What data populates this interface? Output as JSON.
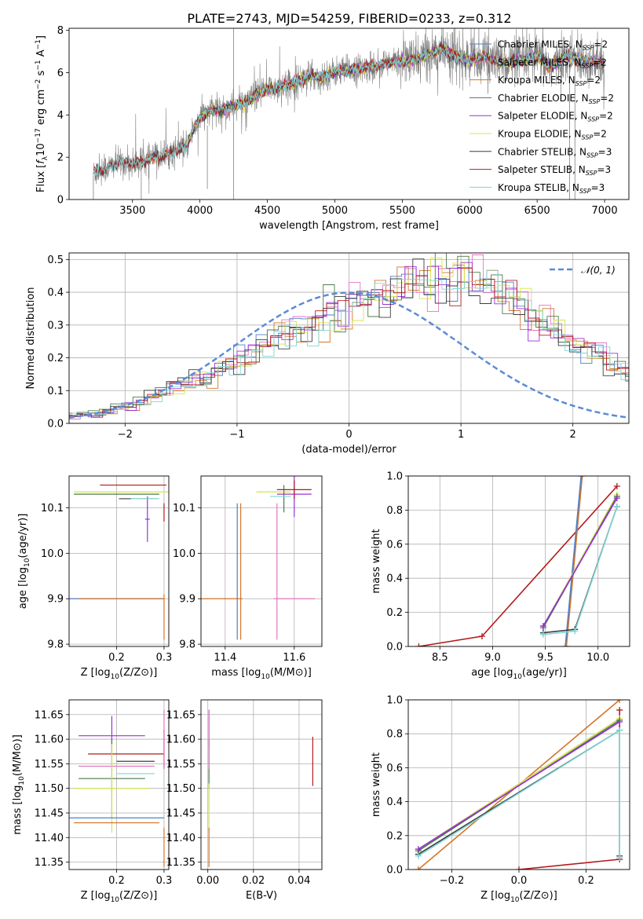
{
  "title": "PLATE=2743, MJD=54259, FIBERID=0233, z=0.312",
  "colors": {
    "Chabrier MILES": "#4f7fc9",
    "Salpeter MILES": "#e377c2",
    "Kroupa MILES": "#d4762a",
    "Chabrier ELODIE": "#4d7a4d",
    "Salpeter ELODIE": "#9b30d9",
    "Kroupa ELODIE": "#d4e34f",
    "Chabrier STELIB": "#3d3d3d",
    "Salpeter STELIB": "#b31b1b",
    "Kroupa STELIB": "#7fd6d6",
    "data": "#808080",
    "normal": "#5b8bd6",
    "grid": "#b0b0b0"
  },
  "chart_data": [
    {
      "id": "spectrum",
      "type": "line",
      "xlabel": "wavelength [Angstrom, rest frame]",
      "ylabel": "Flux [f_λ10^-17 erg cm^-2 s^-1 A^-1]",
      "xlim": [
        3030,
        7180
      ],
      "ylim": [
        0,
        8.1
      ],
      "xticks": [
        3500,
        4000,
        4500,
        5000,
        5500,
        6000,
        6500,
        7000
      ],
      "yticks": [
        0,
        2,
        4,
        6,
        8
      ],
      "grid": false,
      "legend_position": "top-right",
      "legend": [
        {
          "name": "Chabrier MILES",
          "nssp": "2"
        },
        {
          "name": "Salpeter MILES",
          "nssp": "2"
        },
        {
          "name": "Kroupa MILES",
          "nssp": "2"
        },
        {
          "name": "Chabrier ELODIE",
          "nssp": "2"
        },
        {
          "name": "Salpeter ELODIE",
          "nssp": "2"
        },
        {
          "name": "Kroupa ELODIE",
          "nssp": "2"
        },
        {
          "name": "Chabrier STELIB",
          "nssp": "3"
        },
        {
          "name": "Salpeter STELIB",
          "nssp": "3"
        },
        {
          "name": "Kroupa STELIB",
          "nssp": "3"
        }
      ],
      "continuum": {
        "x": [
          3210,
          3300,
          3400,
          3500,
          3600,
          3700,
          3800,
          3900,
          3950,
          4000,
          4100,
          4200,
          4300,
          4400,
          4500,
          4600,
          4700,
          4800,
          4900,
          5000,
          5100,
          5200,
          5300,
          5400,
          5500,
          5600,
          5700,
          5800,
          5900,
          6000,
          6100,
          6200,
          6300,
          6400,
          6500,
          6600,
          6700,
          6800,
          6900,
          7000
        ],
        "y": [
          1.25,
          1.45,
          1.75,
          1.7,
          1.85,
          2.05,
          2.25,
          2.5,
          3.3,
          3.9,
          4.25,
          4.3,
          4.5,
          4.85,
          5.2,
          5.35,
          5.55,
          5.85,
          5.8,
          6.05,
          6.1,
          6.2,
          6.3,
          6.45,
          6.55,
          6.6,
          6.9,
          7.1,
          6.75,
          6.55,
          6.75,
          6.55,
          6.5,
          6.6,
          6.75,
          6.25,
          6.7,
          6.65,
          6.55,
          6.4
        ]
      }
    },
    {
      "id": "residuals",
      "type": "step",
      "xlabel": "(data-model)/error",
      "ylabel": "Normed distribution",
      "xlim": [
        -2.5,
        2.5
      ],
      "ylim": [
        0,
        0.52
      ],
      "xticks": [
        -2,
        -1,
        0,
        1,
        2
      ],
      "yticks": [
        0.0,
        0.1,
        0.2,
        0.3,
        0.4,
        0.5
      ],
      "grid": true,
      "legend_position": "top-right",
      "legend": [
        {
          "name": "𝒩(0, 1)"
        }
      ],
      "bin_width": 0.1,
      "base_hist": [
        0.02,
        0.025,
        0.03,
        0.035,
        0.045,
        0.055,
        0.065,
        0.08,
        0.095,
        0.11,
        0.12,
        0.135,
        0.15,
        0.165,
        0.18,
        0.2,
        0.22,
        0.24,
        0.26,
        0.27,
        0.285,
        0.3,
        0.32,
        0.335,
        0.35,
        0.365,
        0.38,
        0.39,
        0.395,
        0.4,
        0.41,
        0.415,
        0.42,
        0.43,
        0.45,
        0.46,
        0.44,
        0.42,
        0.4,
        0.38,
        0.35,
        0.33,
        0.3,
        0.28,
        0.26,
        0.24,
        0.22,
        0.2,
        0.18,
        0.16,
        0.14,
        0.12,
        0.105,
        0.09,
        0.075,
        0.065,
        0.055,
        0.05,
        0.045,
        0.04
      ]
    },
    {
      "id": "age_vs_Z",
      "type": "errorbar",
      "xlabel": "Z [log10(Z/Z⊙)]",
      "ylabel": "age  [log10(age/yr)]",
      "xlim": [
        0.1,
        0.31
      ],
      "ylim": [
        9.795,
        10.17
      ],
      "xticks": [
        0.2,
        0.3
      ],
      "yticks": [
        9.8,
        9.9,
        10.0,
        10.1
      ],
      "grid": true,
      "points": [
        {
          "m": "Chabrier MILES",
          "x": 0.2,
          "y": 9.9,
          "xerr": 0.1
        },
        {
          "m": "Kroupa MILES",
          "x": 0.21,
          "y": 9.9,
          "xerr": 0.09
        },
        {
          "m": "Chabrier ELODIE",
          "x": 0.2,
          "y": 10.13,
          "xerr": 0.09
        },
        {
          "m": "Salpeter ELODIE",
          "x": 0.265,
          "y": 10.075,
          "xerr": 0.005,
          "yerr": 0.05
        },
        {
          "m": "Kroupa ELODIE",
          "x": 0.21,
          "y": 10.135,
          "xerr": 0.1
        },
        {
          "m": "Chabrier STELIB",
          "x": 0.245,
          "y": 10.12,
          "xerr": 0.04
        },
        {
          "m": "Salpeter STELIB",
          "x": 0.235,
          "y": 10.15,
          "xerr": 0.07
        },
        {
          "m": "Kroupa STELIB",
          "x": 0.26,
          "y": 10.12,
          "xerr": 0.03
        },
        {
          "m": "Salpeter STELIB",
          "x": 0.3,
          "y": 10.09,
          "yerr": 0.02
        },
        {
          "m": "Kroupa MILES",
          "x": 0.3,
          "y": 9.86,
          "yerr": 0.05
        }
      ]
    },
    {
      "id": "age_vs_mass",
      "type": "errorbar",
      "xlabel": "mass [log10(M/M⊙)]",
      "ylabel": "",
      "xlim": [
        11.33,
        11.68
      ],
      "ylim": [
        9.795,
        10.17
      ],
      "xticks": [
        11.4,
        11.6
      ],
      "yticks": [
        9.8,
        9.9,
        10.0,
        10.1
      ],
      "grid": true,
      "points": [
        {
          "m": "Kroupa MILES",
          "x": 11.39,
          "y": 9.9,
          "xerr": 0.06
        },
        {
          "m": "Salpeter MILES",
          "x": 11.6,
          "y": 9.9,
          "xerr": 0.06
        },
        {
          "m": "Chabrier MILES",
          "x": 11.435,
          "y": 9.96,
          "yerr": 0.15
        },
        {
          "m": "Kroupa MILES",
          "x": 11.445,
          "y": 9.96,
          "yerr": 0.15
        },
        {
          "m": "Salpeter MILES",
          "x": 11.55,
          "y": 9.96,
          "yerr": 0.15
        },
        {
          "m": "Kroupa ELODIE",
          "x": 11.54,
          "y": 10.135,
          "xerr": 0.05
        },
        {
          "m": "Salpeter ELODIE",
          "x": 11.6,
          "y": 10.13,
          "xerr": 0.05,
          "yerr": 0.05
        },
        {
          "m": "Chabrier ELODIE",
          "x": 11.57,
          "y": 10.12,
          "yerr": 0.03
        },
        {
          "m": "Salpeter STELIB",
          "x": 11.6,
          "y": 10.14,
          "xerr": 0.05,
          "yerr": 0.02
        },
        {
          "m": "Kroupa STELIB",
          "x": 11.56,
          "y": 10.125,
          "xerr": 0.03
        }
      ]
    },
    {
      "id": "massweight_vs_age",
      "type": "line",
      "xlabel": "age  [log10(age/yr)]",
      "ylabel": "mass weight",
      "xlim": [
        8.2,
        10.3
      ],
      "ylim": [
        0.0,
        1.0
      ],
      "xticks": [
        8.5,
        9.0,
        9.5,
        10.0
      ],
      "yticks": [
        0.0,
        0.2,
        0.4,
        0.6,
        0.8,
        1.0
      ],
      "grid": true,
      "series": [
        {
          "m": "Salpeter STELIB",
          "x": [
            8.3,
            8.9,
            10.18
          ],
          "y": [
            0.0,
            0.06,
            0.94
          ]
        },
        {
          "m": "Kroupa MILES",
          "x": [
            9.7,
            9.85
          ],
          "y": [
            0.0,
            1.0
          ]
        },
        {
          "m": "Chabrier MILES",
          "x": [
            9.69,
            9.84
          ],
          "y": [
            0.0,
            1.0
          ]
        },
        {
          "m": "Kroupa ELODIE",
          "x": [
            9.48,
            10.18
          ],
          "y": [
            0.12,
            0.89
          ]
        },
        {
          "m": "Chabrier ELODIE",
          "x": [
            9.48,
            10.18
          ],
          "y": [
            0.11,
            0.88
          ]
        },
        {
          "m": "Salpeter ELODIE",
          "x": [
            9.48,
            10.18
          ],
          "y": [
            0.12,
            0.87
          ]
        },
        {
          "m": "Chabrier STELIB",
          "x": [
            9.48,
            9.78,
            10.18
          ],
          "y": [
            0.08,
            0.1,
            0.82
          ]
        },
        {
          "m": "Kroupa STELIB",
          "x": [
            9.48,
            9.78,
            10.18
          ],
          "y": [
            0.07,
            0.09,
            0.82
          ]
        }
      ]
    },
    {
      "id": "mass_vs_Z",
      "type": "errorbar",
      "xlabel": "Z [log10(Z/Z⊙)]",
      "ylabel": "mass [log10(M/M⊙)]",
      "xlim": [
        0.1,
        0.31
      ],
      "ylim": [
        11.335,
        11.68
      ],
      "xticks": [
        0.2,
        0.3
      ],
      "yticks": [
        11.35,
        11.4,
        11.45,
        11.5,
        11.55,
        11.6,
        11.65
      ],
      "grid": true,
      "points": [
        {
          "m": "Salpeter ELODIE",
          "x": 0.19,
          "y": 11.607,
          "xerr": 0.07,
          "yerr": 0.04
        },
        {
          "m": "Salpeter STELIB",
          "x": 0.22,
          "y": 11.57,
          "xerr": 0.08
        },
        {
          "m": "Chabrier STELIB",
          "x": 0.24,
          "y": 11.555,
          "xerr": 0.04
        },
        {
          "m": "Salpeter MILES",
          "x": 0.2,
          "y": 11.545,
          "xerr": 0.08
        },
        {
          "m": "Kroupa STELIB",
          "x": 0.24,
          "y": 11.53,
          "xerr": 0.04
        },
        {
          "m": "Chabrier ELODIE",
          "x": 0.19,
          "y": 11.52,
          "xerr": 0.07,
          "yerr": 0.08
        },
        {
          "m": "Kroupa ELODIE",
          "x": 0.19,
          "y": 11.5,
          "xerr": 0.08,
          "yerr": 0.09
        },
        {
          "m": "Chabrier MILES",
          "x": 0.2,
          "y": 11.44,
          "xerr": 0.1
        },
        {
          "m": "Kroupa MILES",
          "x": 0.2,
          "y": 11.43,
          "xerr": 0.09
        },
        {
          "m": "Salpeter STELIB",
          "x": 0.3,
          "y": 11.58,
          "yerr": 0.04
        },
        {
          "m": "Salpeter MILES",
          "x": 0.3,
          "y": 11.6,
          "yerr": 0.06
        },
        {
          "m": "Kroupa MILES",
          "x": 0.3,
          "y": 11.38,
          "yerr": 0.04
        }
      ]
    },
    {
      "id": "mass_vs_EBV",
      "type": "errorbar",
      "xlabel": "E(B-V)",
      "ylabel": "",
      "xlim": [
        -0.003,
        0.05
      ],
      "ylim": [
        11.335,
        11.68
      ],
      "xticks": [
        0.0,
        0.02,
        0.04
      ],
      "yticks": [
        11.35,
        11.4,
        11.45,
        11.5,
        11.55,
        11.6,
        11.65
      ],
      "grid": true,
      "points": [
        {
          "m": "Salpeter ELODIE",
          "x": 0.0005,
          "y": 11.62,
          "yerr": 0.04
        },
        {
          "m": "Chabrier ELODIE",
          "x": 0.0005,
          "y": 11.55,
          "yerr": 0.05
        },
        {
          "m": "Kroupa ELODIE",
          "x": 0.0005,
          "y": 11.46,
          "yerr": 0.05
        },
        {
          "m": "Kroupa MILES",
          "x": 0.0005,
          "y": 11.38,
          "yerr": 0.04
        },
        {
          "m": "Salpeter MILES",
          "x": 0.0005,
          "y": 11.6,
          "yerr": 0.06
        },
        {
          "m": "Salpeter STELIB",
          "x": 0.046,
          "y": 11.555,
          "yerr": 0.05
        }
      ]
    },
    {
      "id": "massweight_vs_Z",
      "type": "line",
      "xlabel": "Z [log10(Z/Z⊙)]",
      "ylabel": "mass weight",
      "xlim": [
        -0.33,
        0.33
      ],
      "ylim": [
        0.0,
        1.0
      ],
      "xticks": [
        -0.2,
        0.0,
        0.2
      ],
      "yticks": [
        0.0,
        0.2,
        0.4,
        0.6,
        0.8,
        1.0
      ],
      "grid": true,
      "series": [
        {
          "m": "Kroupa MILES",
          "x": [
            -0.3,
            0.3
          ],
          "y": [
            0.0,
            1.0
          ]
        },
        {
          "m": "Salpeter STELIB",
          "x": [
            0.0,
            0.3,
            0.3
          ],
          "y": [
            0.0,
            0.06,
            0.94
          ]
        },
        {
          "m": "Kroupa ELODIE",
          "x": [
            -0.3,
            0.3
          ],
          "y": [
            0.12,
            0.89
          ]
        },
        {
          "m": "Chabrier ELODIE",
          "x": [
            -0.3,
            0.3
          ],
          "y": [
            0.11,
            0.88
          ]
        },
        {
          "m": "Salpeter ELODIE",
          "x": [
            -0.3,
            0.3
          ],
          "y": [
            0.12,
            0.87
          ]
        },
        {
          "m": "Chabrier STELIB",
          "x": [
            -0.3,
            0.3,
            0.3
          ],
          "y": [
            0.09,
            0.82,
            0.08
          ]
        },
        {
          "m": "Kroupa STELIB",
          "x": [
            -0.3,
            0.3,
            0.3
          ],
          "y": [
            0.08,
            0.82,
            0.07
          ]
        }
      ]
    }
  ]
}
